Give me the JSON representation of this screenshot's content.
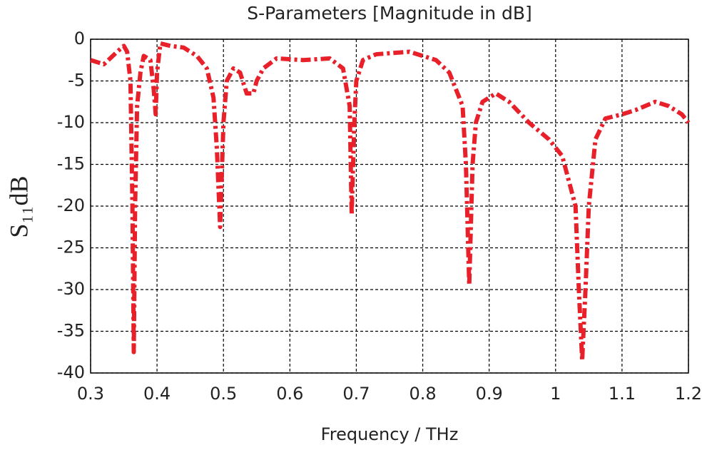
{
  "chart_data": {
    "type": "line",
    "title": "S-Parameters [Magnitude in dB]",
    "x_label": "Frequency / THz",
    "y_label": "S₁₁dB",
    "xlim": [
      0.3,
      1.2
    ],
    "xticks": [
      0.3,
      0.4,
      0.5,
      0.6,
      0.7,
      0.8,
      0.9,
      1,
      1.1,
      1.2
    ],
    "ylim": [
      -40,
      0
    ],
    "yticks": [
      0,
      -5,
      -10,
      -15,
      -20,
      -25,
      -30,
      -35,
      -40
    ],
    "grid": true,
    "series": [
      {
        "color": "#e8202a",
        "x": [
          0.3,
          0.32,
          0.34,
          0.35,
          0.355,
          0.36,
          0.363,
          0.365,
          0.367,
          0.37,
          0.375,
          0.38,
          0.39,
          0.395,
          0.398,
          0.4,
          0.405,
          0.42,
          0.44,
          0.46,
          0.475,
          0.485,
          0.49,
          0.495,
          0.5,
          0.505,
          0.515,
          0.525,
          0.535,
          0.545,
          0.55,
          0.56,
          0.58,
          0.62,
          0.66,
          0.68,
          0.69,
          0.693,
          0.697,
          0.7,
          0.71,
          0.73,
          0.78,
          0.82,
          0.84,
          0.86,
          0.865,
          0.87,
          0.875,
          0.88,
          0.89,
          0.91,
          0.93,
          0.96,
          0.99,
          1.01,
          1.03,
          1.035,
          1.04,
          1.045,
          1.05,
          1.06,
          1.075,
          1.1,
          1.12,
          1.15,
          1.17,
          1.19,
          1.2
        ],
        "values": [
          -2.5,
          -3.0,
          -1.5,
          -0.8,
          -1.5,
          -5,
          -20,
          -37.5,
          -20,
          -8,
          -4,
          -2,
          -2.5,
          -6,
          -9,
          -4,
          -0.5,
          -0.8,
          -1.0,
          -2,
          -3.5,
          -7,
          -13,
          -22.5,
          -10,
          -5,
          -3.5,
          -4,
          -6.5,
          -6.5,
          -5,
          -3.5,
          -2.3,
          -2.5,
          -2.3,
          -3.5,
          -8,
          -21,
          -10,
          -5,
          -2.5,
          -1.8,
          -1.5,
          -2.5,
          -4,
          -8,
          -15,
          -29.5,
          -15,
          -10,
          -7.5,
          -6.5,
          -7.5,
          -10,
          -12,
          -14,
          -20,
          -30,
          -38.5,
          -30,
          -20,
          -12,
          -9.5,
          -9,
          -8.5,
          -7.5,
          -8,
          -9,
          -10
        ]
      }
    ]
  }
}
